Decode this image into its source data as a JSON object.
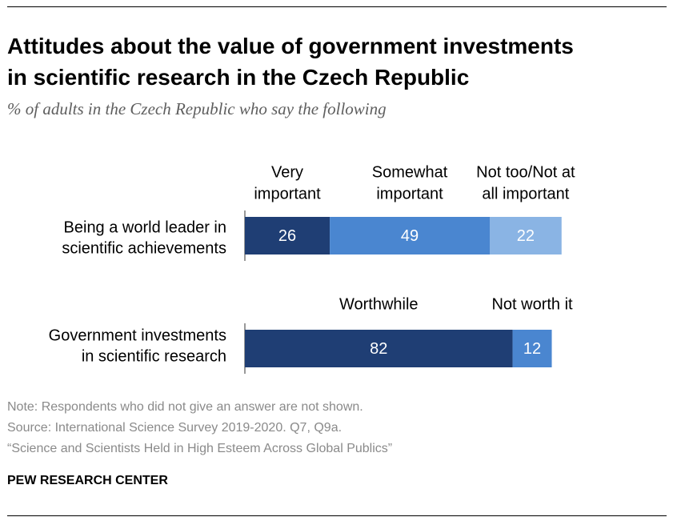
{
  "title_line1": "Attitudes about the value of government investments",
  "title_line2": "in scientific research in the Czech Republic",
  "subtitle": "% of adults in the Czech Republic who say the following",
  "notes": {
    "note": "Note: Respondents who did not give an answer are not shown.",
    "source": "Source: International Science Survey 2019-2020. Q7, Q9a.",
    "report": "“Science and Scientists Held in High Esteem Across Global Publics”"
  },
  "brand": "PEW RESEARCH CENTER",
  "colors": {
    "dark_blue": "#1f3e74",
    "mid_blue": "#4a86d0",
    "light_blue": "#8ab4e4",
    "axis": "#333333",
    "text_on_bar": "#ffffff"
  },
  "chart_data": [
    {
      "type": "bar",
      "orientation": "horizontal",
      "stacked": true,
      "category": [
        "Being a world leader in",
        "scientific achievements"
      ],
      "series": [
        {
          "name": [
            "Very",
            "important"
          ],
          "value": 26,
          "color": "dark_blue"
        },
        {
          "name": [
            "Somewhat",
            "important"
          ],
          "value": 49,
          "color": "mid_blue"
        },
        {
          "name": [
            "Not too/Not at",
            "all important"
          ],
          "value": 22,
          "color": "light_blue"
        }
      ],
      "xlim": [
        0,
        100
      ]
    },
    {
      "type": "bar",
      "orientation": "horizontal",
      "stacked": true,
      "category": [
        "Government investments",
        "in scientific research"
      ],
      "series": [
        {
          "name": [
            "Worthwhile"
          ],
          "value": 82,
          "color": "dark_blue"
        },
        {
          "name": [
            "Not worth it"
          ],
          "value": 12,
          "color": "mid_blue"
        }
      ],
      "xlim": [
        0,
        100
      ]
    }
  ]
}
